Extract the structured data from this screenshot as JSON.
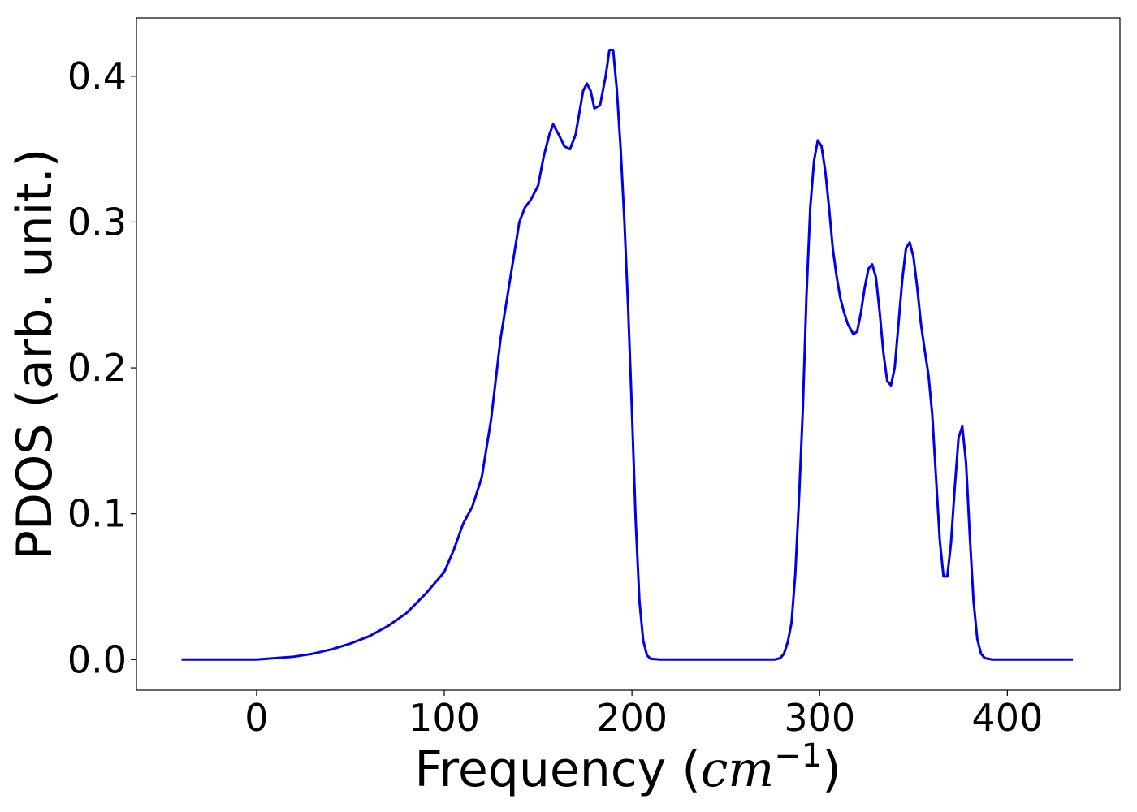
{
  "chart_data": {
    "type": "line",
    "title": "",
    "xlabel": "Frequency (cm⁻¹)",
    "xlabel_parts": {
      "prefix": "Frequency (",
      "unit_base": "cm",
      "unit_exp": "−1",
      "suffix": ")"
    },
    "ylabel": "PDOS (arb. unit.)",
    "xlim": [
      -64,
      460
    ],
    "ylim": [
      -0.021,
      0.44
    ],
    "xticks": [
      0,
      100,
      200,
      300,
      400
    ],
    "xtick_labels": [
      "0",
      "100",
      "200",
      "300",
      "400"
    ],
    "yticks": [
      0.0,
      0.1,
      0.2,
      0.3,
      0.4
    ],
    "ytick_labels": [
      "0.0",
      "0.1",
      "0.2",
      "0.3",
      "0.4"
    ],
    "grid": false,
    "legend": false,
    "series": [
      {
        "color": "#0000ee",
        "points": [
          [
            -40,
            0.0
          ],
          [
            0,
            0.0
          ],
          [
            10,
            0.001
          ],
          [
            20,
            0.002
          ],
          [
            30,
            0.004
          ],
          [
            40,
            0.007
          ],
          [
            50,
            0.011
          ],
          [
            60,
            0.016
          ],
          [
            70,
            0.023
          ],
          [
            80,
            0.032
          ],
          [
            90,
            0.045
          ],
          [
            100,
            0.06
          ],
          [
            105,
            0.075
          ],
          [
            110,
            0.093
          ],
          [
            115,
            0.105
          ],
          [
            120,
            0.125
          ],
          [
            125,
            0.165
          ],
          [
            130,
            0.22
          ],
          [
            135,
            0.26
          ],
          [
            140,
            0.3
          ],
          [
            143,
            0.31
          ],
          [
            146,
            0.315
          ],
          [
            150,
            0.325
          ],
          [
            153,
            0.345
          ],
          [
            156,
            0.36
          ],
          [
            158,
            0.367
          ],
          [
            161,
            0.36
          ],
          [
            164,
            0.352
          ],
          [
            167,
            0.35
          ],
          [
            170,
            0.36
          ],
          [
            172,
            0.375
          ],
          [
            174,
            0.39
          ],
          [
            176,
            0.395
          ],
          [
            178,
            0.39
          ],
          [
            180,
            0.378
          ],
          [
            183,
            0.38
          ],
          [
            186,
            0.4
          ],
          [
            188,
            0.418
          ],
          [
            190,
            0.418
          ],
          [
            192,
            0.39
          ],
          [
            194,
            0.35
          ],
          [
            196,
            0.3
          ],
          [
            198,
            0.24
          ],
          [
            200,
            0.17
          ],
          [
            202,
            0.095
          ],
          [
            204,
            0.04
          ],
          [
            206,
            0.013
          ],
          [
            208,
            0.003
          ],
          [
            210,
            0.0005
          ],
          [
            215,
            0.0
          ],
          [
            240,
            0.0
          ],
          [
            265,
            0.0
          ],
          [
            276,
            0.0
          ],
          [
            279,
            0.001
          ],
          [
            281,
            0.004
          ],
          [
            283,
            0.012
          ],
          [
            285,
            0.025
          ],
          [
            287,
            0.058
          ],
          [
            289,
            0.11
          ],
          [
            291,
            0.17
          ],
          [
            293,
            0.25
          ],
          [
            295,
            0.31
          ],
          [
            297,
            0.342
          ],
          [
            299,
            0.356
          ],
          [
            301,
            0.352
          ],
          [
            303,
            0.335
          ],
          [
            305,
            0.31
          ],
          [
            307,
            0.282
          ],
          [
            309,
            0.263
          ],
          [
            311,
            0.248
          ],
          [
            313,
            0.238
          ],
          [
            315,
            0.23
          ],
          [
            318,
            0.223
          ],
          [
            320,
            0.225
          ],
          [
            322,
            0.238
          ],
          [
            324,
            0.255
          ],
          [
            326,
            0.268
          ],
          [
            328,
            0.271
          ],
          [
            330,
            0.262
          ],
          [
            332,
            0.238
          ],
          [
            334,
            0.21
          ],
          [
            336,
            0.191
          ],
          [
            338,
            0.188
          ],
          [
            340,
            0.2
          ],
          [
            342,
            0.23
          ],
          [
            344,
            0.26
          ],
          [
            346,
            0.282
          ],
          [
            348,
            0.286
          ],
          [
            350,
            0.276
          ],
          [
            352,
            0.255
          ],
          [
            354,
            0.23
          ],
          [
            356,
            0.212
          ],
          [
            358,
            0.195
          ],
          [
            360,
            0.168
          ],
          [
            362,
            0.125
          ],
          [
            364,
            0.082
          ],
          [
            366,
            0.057
          ],
          [
            368,
            0.057
          ],
          [
            370,
            0.08
          ],
          [
            372,
            0.118
          ],
          [
            374,
            0.152
          ],
          [
            376,
            0.16
          ],
          [
            378,
            0.135
          ],
          [
            380,
            0.085
          ],
          [
            382,
            0.04
          ],
          [
            384,
            0.014
          ],
          [
            386,
            0.004
          ],
          [
            388,
            0.001
          ],
          [
            392,
            0.0
          ],
          [
            435,
            0.0
          ]
        ]
      }
    ]
  }
}
